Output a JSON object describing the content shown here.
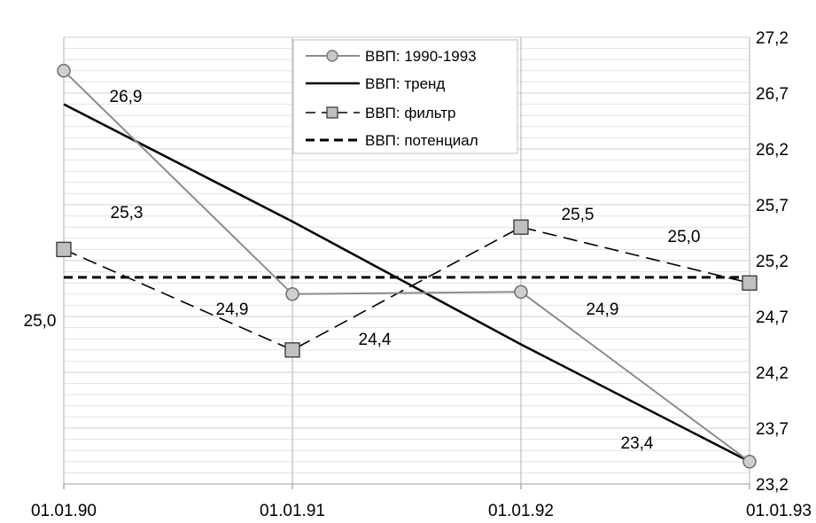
{
  "chart_data": {
    "type": "line",
    "x": [
      "01.01.90",
      "01.01.91",
      "01.01.92",
      "01.01.93"
    ],
    "ylim": [
      23.2,
      27.2
    ],
    "y_ticks": [
      "23,2",
      "23,7",
      "24,2",
      "24,7",
      "25,2",
      "25,7",
      "26,2",
      "26,7",
      "27,2"
    ],
    "grid": true,
    "legend_position": "top-center",
    "series": [
      {
        "name": "ВВП: 1990-1993",
        "values": [
          26.9,
          24.9,
          24.92,
          23.4
        ],
        "style": "solid-gray-circle",
        "color": "#8c8c8c"
      },
      {
        "name": "ВВП: тренд",
        "values": [
          26.6,
          25.55,
          24.45,
          23.4
        ],
        "style": "solid-black",
        "color": "#000000"
      },
      {
        "name": "ВВП: фильтр",
        "values": [
          25.3,
          24.4,
          25.5,
          25.0
        ],
        "style": "dashed-square",
        "color": "#000000"
      },
      {
        "name": "ВВП: потенциал",
        "values": [
          25.05,
          25.05,
          25.05,
          25.05
        ],
        "style": "dashed-bold",
        "color": "#000000"
      }
    ],
    "data_labels": [
      "26,9",
      "25,3",
      "24,9",
      "24,4",
      "25,5",
      "24,9",
      "25,0",
      "23,4",
      "25,0"
    ]
  }
}
